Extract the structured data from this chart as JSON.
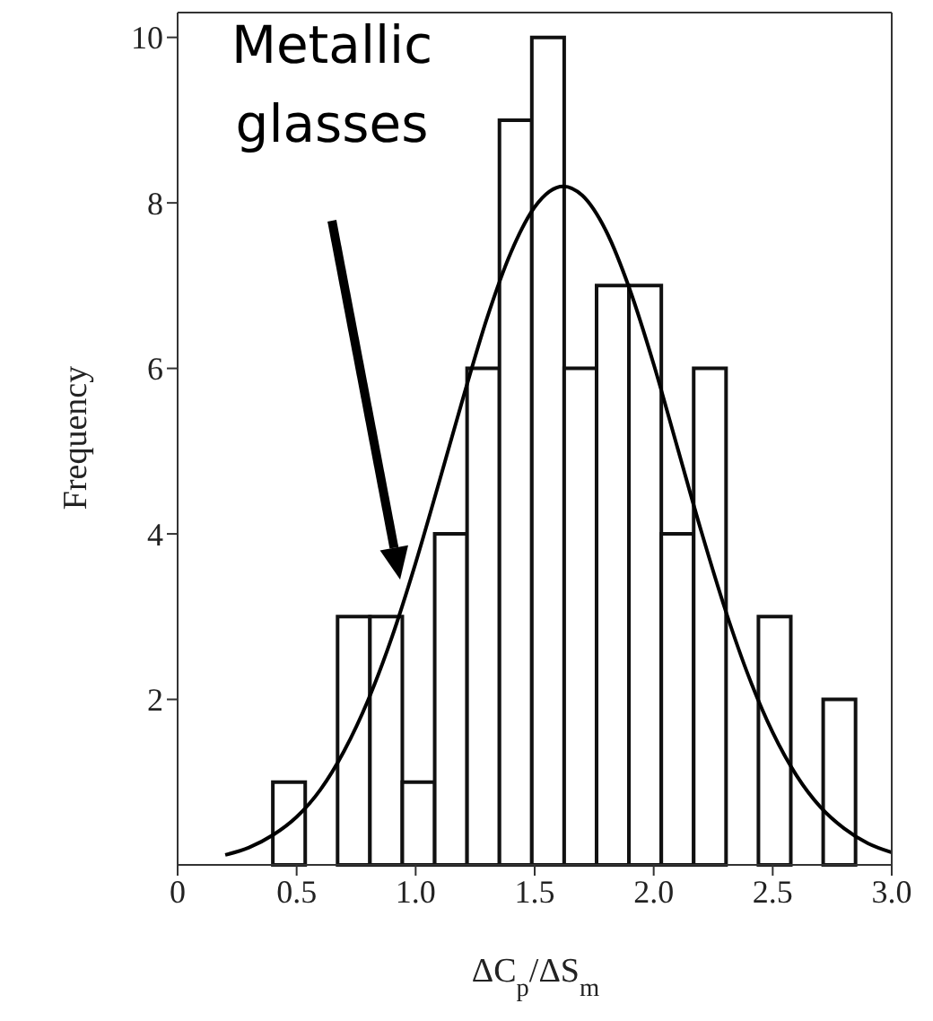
{
  "chart_data": {
    "type": "histogram",
    "xlabel": "ΔC$_{p}$/ΔS$_{m}$",
    "ylabel": "Frequency",
    "annotations": [
      "Metallic glasses"
    ],
    "xlim": [
      0,
      3
    ],
    "ylim": [
      0,
      10.3
    ],
    "xticks": [
      0,
      {
        "value": 0.5,
        "label": "0.5"
      },
      {
        "value": 1,
        "label": "1.0"
      },
      {
        "value": 1.5,
        "label": "1.5"
      },
      {
        "value": 2,
        "label": "2.0"
      },
      {
        "value": 2.5,
        "label": "2.5"
      },
      {
        "value": 3,
        "label": "3.0"
      }
    ],
    "yticks": [
      2,
      4,
      6,
      8,
      10
    ],
    "grid": false,
    "legend": false,
    "marker": "none",
    "line_style": "solid",
    "series": [
      {
        "color": "#ffffff",
        "bins": [
          0.4,
          0.536,
          0.672,
          0.808,
          0.944,
          1.08,
          1.216,
          1.352,
          1.488,
          1.624,
          1.76,
          1.896,
          2.032,
          2.168,
          2.304,
          2.44,
          2.576,
          2.712,
          2.848
        ],
        "values": [
          1,
          0,
          3,
          3,
          1,
          4,
          6,
          9,
          10,
          6,
          7,
          7,
          4,
          6,
          0,
          3,
          0,
          2
        ]
      },
      {
        "type": "line",
        "color": "#000000",
        "x": [
          0.2,
          0.3,
          0.4,
          0.5,
          0.6,
          0.7,
          0.8,
          0.9,
          1.0,
          1.1,
          1.2,
          1.3,
          1.4,
          1.5,
          1.62,
          1.7,
          1.8,
          1.9,
          2.0,
          2.1,
          2.2,
          2.3,
          2.4,
          2.5,
          2.6,
          2.7,
          2.8,
          2.9,
          3.0
        ],
        "values": [
          0.12,
          0.21,
          0.36,
          0.58,
          0.91,
          1.38,
          1.99,
          2.75,
          3.65,
          4.64,
          5.65,
          6.61,
          7.4,
          7.95,
          8.2,
          8.09,
          7.66,
          6.95,
          6.05,
          5.04,
          4.03,
          3.09,
          2.27,
          1.6,
          1.08,
          0.7,
          0.44,
          0.26,
          0.15
        ]
      }
    ]
  }
}
